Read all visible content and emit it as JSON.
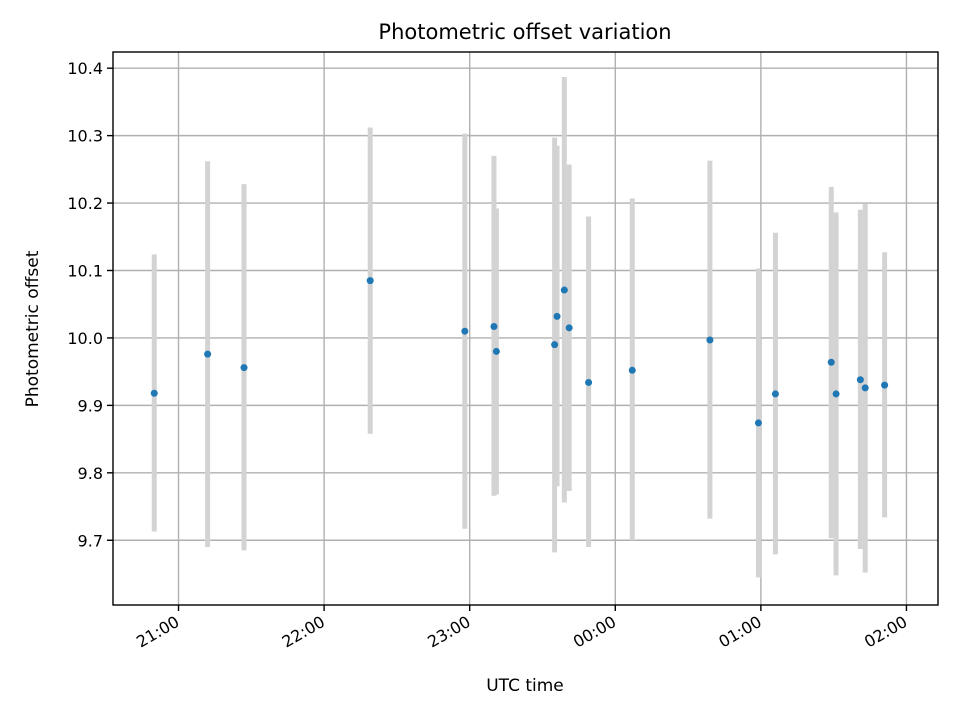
{
  "chart_data": {
    "type": "scatter",
    "title": "Photometric offset variation",
    "xlabel": "UTC time",
    "ylabel": "Photometric offset",
    "x_type": "time",
    "xlim": [
      "20:33",
      "02:13"
    ],
    "ylim": [
      9.604,
      10.424
    ],
    "grid": true,
    "xticks": [
      "21:00",
      "22:00",
      "23:00",
      "00:00",
      "01:00",
      "02:00"
    ],
    "xtick_times": [
      "21:00",
      "22:00",
      "23:00",
      "00:00",
      "01:00",
      "02:00"
    ],
    "yticks": [
      9.7,
      9.8,
      9.9,
      10.0,
      10.1,
      10.2,
      10.3,
      10.4
    ],
    "marker_color": "#1f77b4",
    "errorbar_color": "#d3d3d3",
    "points": [
      {
        "t": "20:50",
        "y": 9.918,
        "lo": 9.713,
        "hi": 10.124
      },
      {
        "t": "21:12",
        "y": 9.976,
        "lo": 9.69,
        "hi": 10.262
      },
      {
        "t": "21:27",
        "y": 9.956,
        "lo": 9.685,
        "hi": 10.228
      },
      {
        "t": "22:19",
        "y": 10.085,
        "lo": 9.858,
        "hi": 10.312
      },
      {
        "t": "22:58",
        "y": 10.01,
        "lo": 9.717,
        "hi": 10.303
      },
      {
        "t": "23:10",
        "y": 10.017,
        "lo": 9.766,
        "hi": 10.27
      },
      {
        "t": "23:11",
        "y": 9.98,
        "lo": 9.768,
        "hi": 10.192
      },
      {
        "t": "23:35",
        "y": 9.99,
        "lo": 9.682,
        "hi": 10.297
      },
      {
        "t": "23:36",
        "y": 10.032,
        "lo": 9.78,
        "hi": 10.285
      },
      {
        "t": "23:39",
        "y": 10.071,
        "lo": 9.756,
        "hi": 10.387
      },
      {
        "t": "23:41",
        "y": 10.015,
        "lo": 9.773,
        "hi": 10.257
      },
      {
        "t": "23:49",
        "y": 9.934,
        "lo": 9.69,
        "hi": 10.18
      },
      {
        "t": "00:07",
        "y": 9.952,
        "lo": 9.7,
        "hi": 10.207
      },
      {
        "t": "00:39",
        "y": 9.997,
        "lo": 9.732,
        "hi": 10.263
      },
      {
        "t": "00:59",
        "y": 9.874,
        "lo": 9.645,
        "hi": 10.103
      },
      {
        "t": "01:06",
        "y": 9.917,
        "lo": 9.679,
        "hi": 10.156
      },
      {
        "t": "01:29",
        "y": 9.964,
        "lo": 9.703,
        "hi": 10.224
      },
      {
        "t": "01:31",
        "y": 9.917,
        "lo": 9.648,
        "hi": 10.186
      },
      {
        "t": "01:41",
        "y": 9.938,
        "lo": 9.687,
        "hi": 10.19
      },
      {
        "t": "01:43",
        "y": 9.926,
        "lo": 9.652,
        "hi": 10.199
      },
      {
        "t": "01:51",
        "y": 9.93,
        "lo": 9.734,
        "hi": 10.127
      }
    ]
  }
}
